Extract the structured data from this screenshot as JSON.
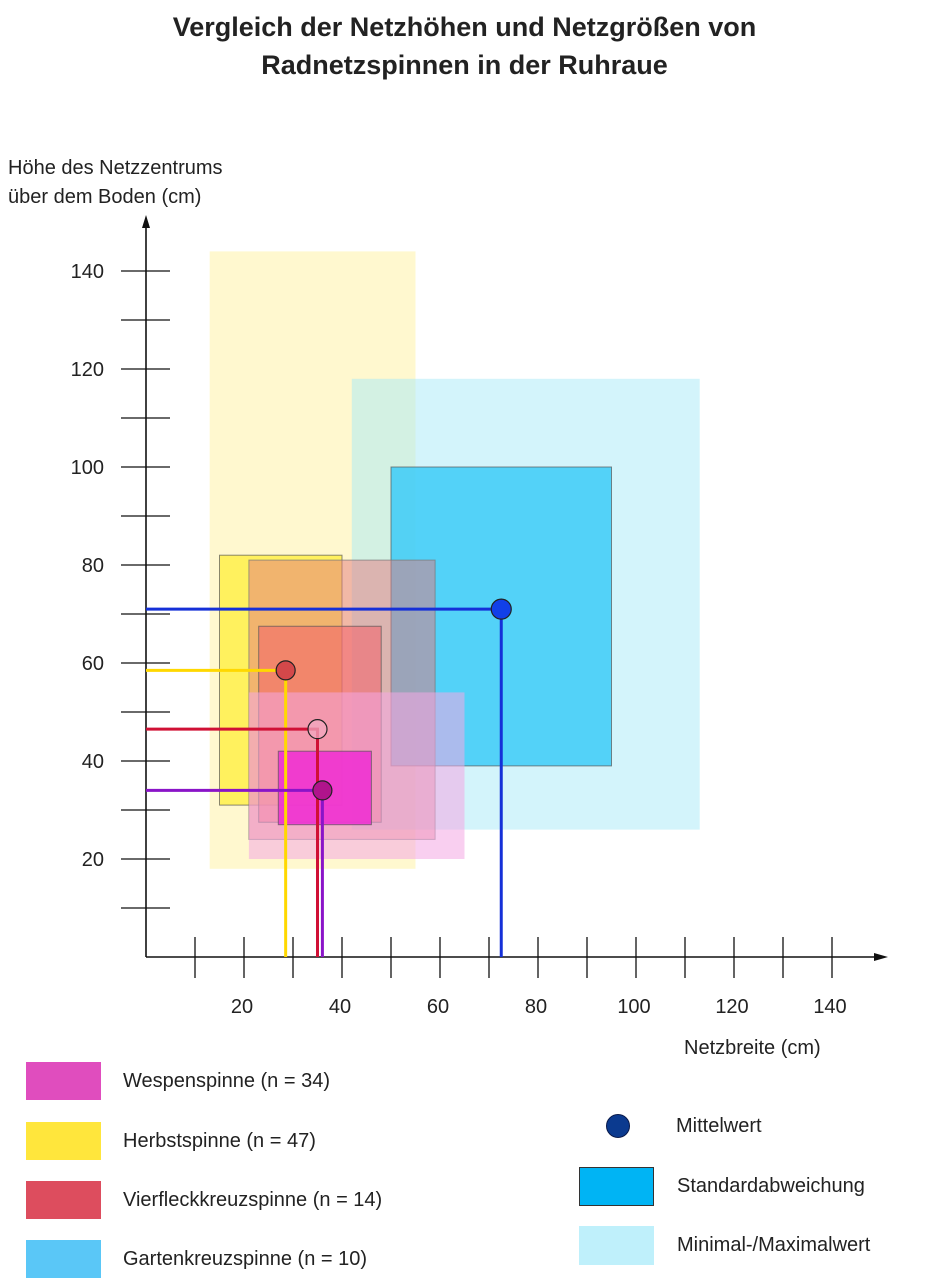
{
  "title_lines": [
    "Vergleich der Netzhöhen und Netzgrößen von",
    "Radnetzspinnen in der Ruhraue"
  ],
  "chart_data": {
    "type": "scatter",
    "title": "Vergleich der Netzhöhen und Netzgrößen von Radnetzspinnen in der Ruhraue",
    "ylabel_lines": [
      "Höhe des Netzzentrums",
      "über dem Boden (cm)"
    ],
    "xlabel": "Netzbreite (cm)",
    "xlim": [
      0,
      150
    ],
    "ylim": [
      0,
      140
    ],
    "x_ticks": [
      20,
      40,
      60,
      80,
      100,
      120,
      140
    ],
    "y_ticks": [
      20,
      40,
      60,
      80,
      100,
      120,
      140
    ],
    "series": [
      {
        "name": "Gartenkreuzspinne (n = 10)",
        "color": "#4FC8F6",
        "minmax": {
          "x": [
            42,
            113
          ],
          "y": [
            26,
            118
          ]
        },
        "sd": {
          "x": [
            50,
            95
          ],
          "y": [
            39,
            100
          ]
        },
        "mean": {
          "x": 72.5,
          "y": 71
        }
      },
      {
        "name": "Herbstspinne (n = 47)",
        "color": "#FFE83A",
        "minmax": {
          "x": [
            13,
            55
          ],
          "y": [
            18,
            144
          ]
        },
        "sd": {
          "x": [
            15,
            40
          ],
          "y": [
            31,
            82
          ]
        },
        "mean": {
          "x": 28.5,
          "y": 58.5
        }
      },
      {
        "name": "Vierfleckkreuzspinne (n = 14)",
        "color": "#E05060",
        "minmax": {
          "x": [
            21,
            59
          ],
          "y": [
            24,
            81
          ]
        },
        "sd": {
          "x": [
            23,
            48
          ],
          "y": [
            27.5,
            67.5
          ]
        },
        "mean": {
          "x": 35,
          "y": 46.5
        }
      },
      {
        "name": "Wespenspinne (n = 34)",
        "color": "#E23FC0",
        "minmax": {
          "x": [
            21,
            65
          ],
          "y": [
            20,
            54
          ]
        },
        "sd": {
          "x": [
            27,
            46
          ],
          "y": [
            27,
            42
          ]
        },
        "mean": {
          "x": 36,
          "y": 34
        }
      }
    ],
    "legend_species": [
      {
        "label": "Wespenspinne (n = 34)",
        "color": "#E04DBE"
      },
      {
        "label": "Herbstspinne (n = 47)",
        "color": "#FFE63C"
      },
      {
        "label": "Vierfleckkreuzspinne (n = 14)",
        "color": "#DD4D5E"
      },
      {
        "label": "Gartenkreuzspinne (n = 10)",
        "color": "#5AC7F7"
      }
    ],
    "legend_key": {
      "mean_label": "Mittelwert",
      "sd_label": "Standardabweichung",
      "minmax_label": "Minimal-/Maximalwert"
    }
  }
}
